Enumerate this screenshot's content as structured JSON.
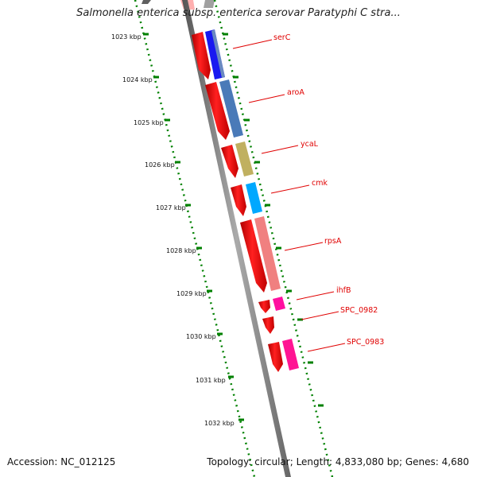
{
  "title": "Salmonella enterica subsp. enterica serovar Paratyphi C stra...",
  "accession_label": "Accession:",
  "accession": "NC_012125",
  "topology_label": "Topology:",
  "topology": "circular",
  "length_label": "Length:",
  "length": "4,833,080 bp",
  "genes_label": "Genes:",
  "genes": "4,680",
  "ruler": [
    "1023 kbp",
    "1024 kbp",
    "1025 kbp",
    "1026 kbp",
    "1027 kbp",
    "1028 kbp",
    "1029 kbp",
    "1030 kbp",
    "1031 kbp",
    "1032 kbp"
  ],
  "gene_labels": [
    "serC",
    "aroA",
    "ycaL",
    "cmk",
    "rpsA",
    "ihfB",
    "SPC_0982",
    "SPC_0983"
  ],
  "colors": {
    "cds": "#ff0000",
    "backbone": "#808080",
    "ruler": "#008000",
    "label": "#e00000",
    "serC": "#0000ee",
    "aroA": "#4a7ab8",
    "ycaL": "#c0b060",
    "cmk": "#00a8ff",
    "rpsA": "#f08080",
    "ihfB": "#ff10a0",
    "SPC_0983": "#ff1493"
  }
}
